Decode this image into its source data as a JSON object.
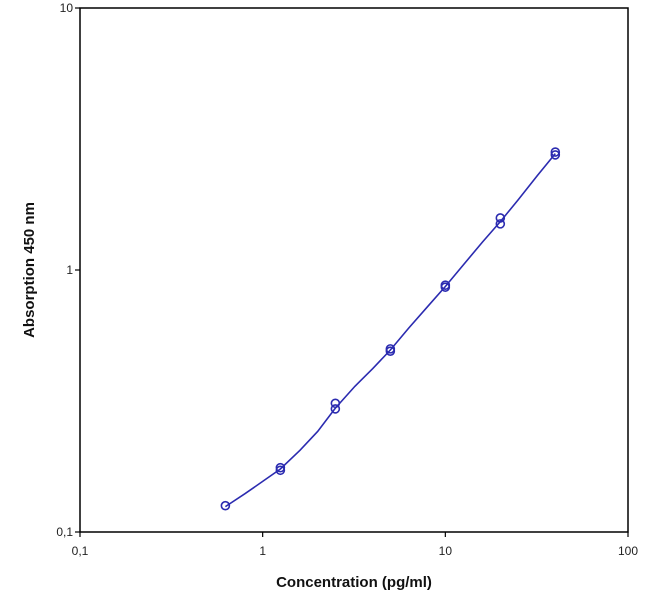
{
  "chart_data": {
    "type": "scatter",
    "title": "",
    "xlabel": "Concentration (pg/ml)",
    "ylabel": "Absorption 450 nm",
    "x_scale": "log",
    "y_scale": "log",
    "xlim": [
      0.1,
      100
    ],
    "ylim": [
      0.1,
      10
    ],
    "x_ticks": [
      {
        "value": 0.1,
        "label": "0,1"
      },
      {
        "value": 1,
        "label": "1"
      },
      {
        "value": 10,
        "label": "10"
      },
      {
        "value": 100,
        "label": "100"
      }
    ],
    "y_ticks": [
      {
        "value": 0.1,
        "label": "0,1"
      },
      {
        "value": 1,
        "label": "1"
      },
      {
        "value": 10,
        "label": "10"
      }
    ],
    "grid": false,
    "legend": "none",
    "series": [
      {
        "kind": "points",
        "marker": "open-circle",
        "color": "#2b2bb0",
        "x": [
          0.625,
          1.25,
          1.25,
          2.5,
          2.5,
          5,
          5,
          10,
          10,
          20,
          20,
          40,
          40
        ],
        "y": [
          0.126,
          0.172,
          0.176,
          0.295,
          0.31,
          0.49,
          0.5,
          0.86,
          0.875,
          1.5,
          1.58,
          2.75,
          2.82
        ]
      },
      {
        "kind": "fit-curve",
        "color": "#2b2bb0",
        "x": [
          0.625,
          0.8,
          1.0,
          1.25,
          1.6,
          2.0,
          2.5,
          3.2,
          4.0,
          5.0,
          6.3,
          8.0,
          10,
          12.6,
          16,
          20,
          25,
          32,
          40
        ],
        "y": [
          0.125,
          0.14,
          0.156,
          0.174,
          0.205,
          0.242,
          0.297,
          0.36,
          0.42,
          0.495,
          0.6,
          0.725,
          0.865,
          1.05,
          1.28,
          1.53,
          1.85,
          2.3,
          2.78
        ]
      }
    ]
  }
}
